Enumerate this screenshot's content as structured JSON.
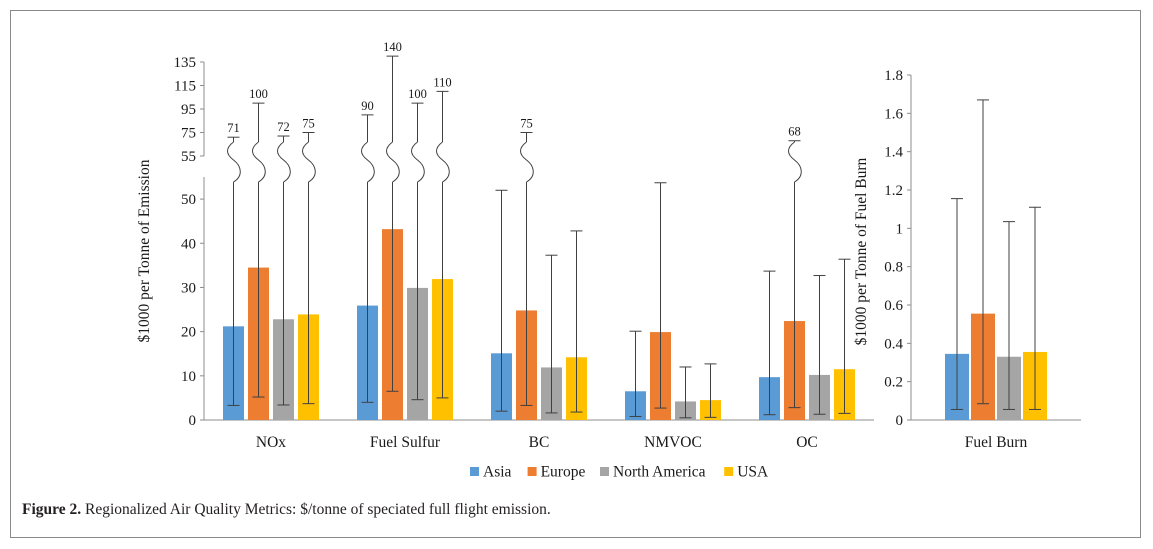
{
  "chart_data": [
    {
      "type": "bar",
      "categories": [
        "NOx",
        "Fuel Sulfur",
        "BC",
        "NMVOC",
        "OC"
      ],
      "ylabel": "$1000 per Tonne of Emission",
      "ylim": [
        0,
        55
      ],
      "yticks": [
        0,
        10,
        20,
        30,
        40,
        50
      ],
      "broken_axis_ticks": [
        55,
        75,
        95,
        115,
        135
      ],
      "series": [
        {
          "name": "Asia",
          "color": "#5b9bd5",
          "values": [
            21.2,
            25.9,
            15.1,
            6.5,
            9.7
          ],
          "err_low": [
            3.3,
            4.0,
            2.0,
            0.8,
            1.2
          ],
          "err_high": [
            71,
            90,
            52,
            20.1,
            33.7
          ]
        },
        {
          "name": "Europe",
          "color": "#ed7d31",
          "values": [
            34.5,
            43.2,
            24.8,
            19.9,
            22.4
          ],
          "err_low": [
            5.2,
            6.5,
            3.3,
            2.7,
            2.8
          ],
          "err_high": [
            100,
            140,
            75,
            53.7,
            68
          ]
        },
        {
          "name": "North America",
          "color": "#a5a5a5",
          "values": [
            22.8,
            29.9,
            11.9,
            4.2,
            10.2
          ],
          "err_low": [
            3.4,
            4.6,
            1.6,
            0.5,
            1.3
          ],
          "err_high": [
            72,
            100,
            37.3,
            12,
            32.7
          ]
        },
        {
          "name": "USA",
          "color": "#ffc000",
          "values": [
            23.9,
            31.9,
            14.2,
            4.5,
            11.5
          ],
          "err_low": [
            3.7,
            5.0,
            1.8,
            0.6,
            1.5
          ],
          "err_high": [
            75,
            110,
            42.8,
            12.7,
            36.4
          ]
        }
      ],
      "break_labels": [
        {
          "series": 0,
          "category": 0,
          "text": "71"
        },
        {
          "series": 1,
          "category": 0,
          "text": "100"
        },
        {
          "series": 2,
          "category": 0,
          "text": "72"
        },
        {
          "series": 3,
          "category": 0,
          "text": "75"
        },
        {
          "series": 0,
          "category": 1,
          "text": "90"
        },
        {
          "series": 1,
          "category": 1,
          "text": "140"
        },
        {
          "series": 2,
          "category": 1,
          "text": "100"
        },
        {
          "series": 3,
          "category": 1,
          "text": "110"
        },
        {
          "series": 1,
          "category": 2,
          "text": "75"
        },
        {
          "series": 1,
          "category": 4,
          "text": "68"
        }
      ],
      "legend": [
        "Asia",
        "Europe",
        "North America",
        "USA"
      ],
      "legend_position": "bottom-center"
    },
    {
      "type": "bar",
      "categories": [
        "Fuel Burn"
      ],
      "ylabel": "$1000 per Tonne of Fuel Burn",
      "ylim": [
        0,
        1.8
      ],
      "yticks": [
        0,
        0.2,
        0.4,
        0.6,
        0.8,
        1,
        1.2,
        1.4,
        1.6,
        1.8
      ],
      "series": [
        {
          "name": "Asia",
          "color": "#5b9bd5",
          "values": [
            0.345
          ],
          "err_low": [
            0.055
          ],
          "err_high": [
            1.155
          ]
        },
        {
          "name": "Europe",
          "color": "#ed7d31",
          "values": [
            0.555
          ],
          "err_low": [
            0.085
          ],
          "err_high": [
            1.67
          ]
        },
        {
          "name": "North America",
          "color": "#a5a5a5",
          "values": [
            0.33
          ],
          "err_low": [
            0.055
          ],
          "err_high": [
            1.035
          ]
        },
        {
          "name": "USA",
          "color": "#ffc000",
          "values": [
            0.355
          ],
          "err_low": [
            0.055
          ],
          "err_high": [
            1.11
          ]
        }
      ]
    }
  ],
  "caption": {
    "label": "Figure 2.",
    "text": " Regionalized Air Quality Metrics: $/tonne of speciated full flight emission."
  }
}
